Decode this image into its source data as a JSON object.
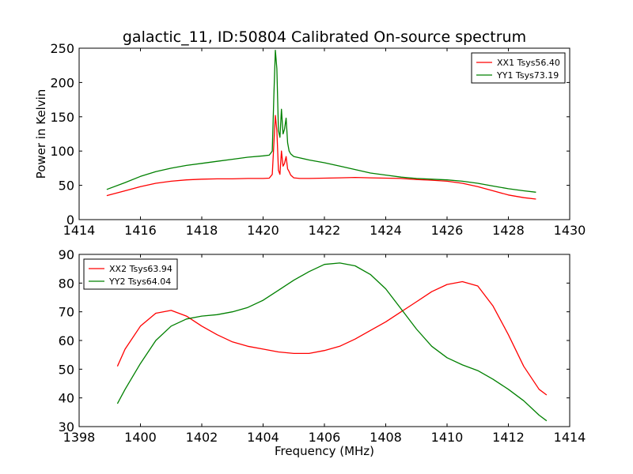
{
  "title": "galactic_11, ID:50804 Calibrated On-source spectrum",
  "chart_data": [
    {
      "type": "line",
      "xlabel": "",
      "ylabel": "Power in Kelvin",
      "xlim": [
        1414,
        1430
      ],
      "ylim": [
        0,
        250
      ],
      "xticks": [
        "1414",
        "1416",
        "1418",
        "1420",
        "1422",
        "1424",
        "1426",
        "1428",
        "1430"
      ],
      "yticks": [
        "0",
        "50",
        "100",
        "150",
        "200",
        "250"
      ],
      "legend_position": "upper right",
      "grid": false,
      "series": [
        {
          "name": "XX1 Tsys56.40",
          "color": "#ff0000",
          "x": [
            1414.9,
            1415.5,
            1416.0,
            1416.5,
            1417.0,
            1417.5,
            1418.0,
            1418.5,
            1419.0,
            1419.5,
            1420.0,
            1420.2,
            1420.3,
            1420.35,
            1420.4,
            1420.45,
            1420.5,
            1420.55,
            1420.6,
            1420.65,
            1420.7,
            1420.75,
            1420.8,
            1420.85,
            1420.9,
            1421.0,
            1421.2,
            1421.5,
            1422.0,
            1422.5,
            1423.0,
            1423.5,
            1424.0,
            1424.5,
            1425.0,
            1425.5,
            1426.0,
            1426.5,
            1427.0,
            1427.5,
            1428.0,
            1428.5,
            1428.9
          ],
          "y": [
            35,
            42,
            48,
            53,
            56,
            58,
            59,
            59.5,
            59.5,
            60,
            60,
            60.5,
            66,
            110,
            152,
            130,
            72,
            66,
            100,
            78,
            82,
            92,
            74,
            70,
            65,
            61,
            60,
            60,
            60.5,
            61,
            61.5,
            61,
            60.5,
            60,
            58.5,
            57.5,
            56,
            53,
            48,
            42,
            36,
            32,
            30
          ]
        },
        {
          "name": "YY1 Tsys73.19",
          "color": "#008000",
          "x": [
            1414.9,
            1415.5,
            1416.0,
            1416.5,
            1417.0,
            1417.5,
            1418.0,
            1418.5,
            1419.0,
            1419.5,
            1420.0,
            1420.2,
            1420.3,
            1420.35,
            1420.4,
            1420.45,
            1420.5,
            1420.55,
            1420.6,
            1420.65,
            1420.7,
            1420.75,
            1420.8,
            1420.85,
            1420.9,
            1421.0,
            1421.2,
            1421.5,
            1422.0,
            1422.5,
            1423.0,
            1423.5,
            1424.0,
            1424.5,
            1425.0,
            1425.5,
            1426.0,
            1426.5,
            1427.0,
            1427.5,
            1428.0,
            1428.5,
            1428.9
          ],
          "y": [
            44,
            54,
            63,
            70,
            75,
            79,
            82,
            85,
            88,
            91,
            93,
            94,
            100,
            180,
            247,
            220,
            130,
            120,
            161,
            125,
            132,
            148,
            112,
            100,
            96,
            92,
            90,
            87,
            83,
            78,
            73,
            68,
            65,
            62,
            60,
            59,
            58,
            56,
            53,
            49,
            45,
            42,
            40
          ]
        }
      ]
    },
    {
      "type": "line",
      "xlabel": "Frequency (MHz)",
      "ylabel": "",
      "xlim": [
        1398,
        1414
      ],
      "ylim": [
        30,
        90
      ],
      "xticks": [
        "1398",
        "1400",
        "1402",
        "1404",
        "1406",
        "1408",
        "1410",
        "1412",
        "1414"
      ],
      "yticks": [
        "30",
        "40",
        "50",
        "60",
        "70",
        "80",
        "90"
      ],
      "legend_position": "upper left",
      "grid": false,
      "series": [
        {
          "name": "XX2 Tsys63.94",
          "color": "#ff0000",
          "x": [
            1399.25,
            1399.5,
            1400.0,
            1400.5,
            1401.0,
            1401.5,
            1402.0,
            1402.5,
            1403.0,
            1403.5,
            1404.0,
            1404.5,
            1405.0,
            1405.5,
            1406.0,
            1406.5,
            1407.0,
            1407.5,
            1408.0,
            1408.5,
            1409.0,
            1409.5,
            1410.0,
            1410.5,
            1411.0,
            1411.5,
            1412.0,
            1412.5,
            1413.0,
            1413.25
          ],
          "y": [
            51,
            57,
            65,
            69.5,
            70.5,
            68.5,
            65,
            62,
            59.5,
            58,
            57,
            56,
            55.5,
            55.5,
            56.5,
            58,
            60.5,
            63.5,
            66.5,
            70,
            73.5,
            77,
            79.5,
            80.5,
            79,
            72,
            62,
            51,
            43,
            41
          ]
        },
        {
          "name": "YY2 Tsys64.04",
          "color": "#008000",
          "x": [
            1399.25,
            1399.5,
            1400.0,
            1400.5,
            1401.0,
            1401.5,
            1402.0,
            1402.5,
            1403.0,
            1403.5,
            1404.0,
            1404.5,
            1405.0,
            1405.5,
            1406.0,
            1406.5,
            1407.0,
            1407.5,
            1408.0,
            1408.5,
            1409.0,
            1409.5,
            1410.0,
            1410.5,
            1411.0,
            1411.5,
            1412.0,
            1412.5,
            1413.0,
            1413.25
          ],
          "y": [
            38,
            43,
            52,
            60,
            65,
            67.5,
            68.5,
            69,
            70,
            71.5,
            74,
            77.5,
            81,
            84,
            86.5,
            87,
            86,
            83,
            78,
            71,
            64,
            58,
            54,
            51.5,
            49.5,
            46.5,
            43,
            39,
            34,
            32
          ]
        }
      ]
    }
  ]
}
